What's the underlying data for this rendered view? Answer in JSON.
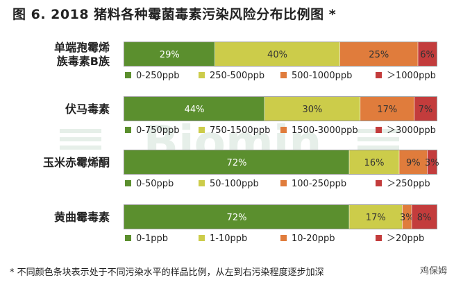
{
  "title": "图 6. 2018 猪料各种霉菌毒素污染风险分布比例图 *",
  "footnote": "* 不同颜色条块表示处于不同污染水平的样品比例，从左到右污染程度逐步加深",
  "watermark": {
    "logo_text": "Biomin",
    "credit_text": "鸡保姆"
  },
  "colors": {
    "level1": "#5b8f2e",
    "level2": "#cccc4a",
    "level3": "#e07c3c",
    "level4": "#c33c3c",
    "bar_border": "#999999"
  },
  "chart_data": {
    "type": "bar",
    "orientation": "horizontal-stacked-100",
    "unit": "%",
    "bars": [
      {
        "category_lines": [
          "单端孢霉烯",
          "族毒素B族"
        ],
        "values": [
          29,
          40,
          25,
          6
        ],
        "labels": [
          "29%",
          "40%",
          "25%",
          "6%"
        ],
        "legend": [
          "0-250ppb",
          "250-500ppb",
          "500-1000ppb",
          "＞1000ppb"
        ]
      },
      {
        "category_lines": [
          "伏马毒素"
        ],
        "values": [
          44,
          30,
          17,
          7
        ],
        "labels": [
          "44%",
          "30%",
          "17%",
          "7%"
        ],
        "legend": [
          "0-750ppb",
          "750-1500ppb",
          "1500-3000ppb",
          "＞3000ppb"
        ]
      },
      {
        "category_lines": [
          "玉米赤霉烯酮"
        ],
        "values": [
          72,
          16,
          9,
          3
        ],
        "labels": [
          "72%",
          "16%",
          "9%",
          "3%"
        ],
        "legend": [
          "0-50ppb",
          "50-100ppb",
          "100-250ppb",
          "＞250ppb"
        ]
      },
      {
        "category_lines": [
          "黄曲霉毒素"
        ],
        "values": [
          72,
          17,
          3,
          8
        ],
        "labels": [
          "72%",
          "17%",
          "3%",
          "8%"
        ],
        "legend": [
          "0-1ppb",
          "1-10ppb",
          "10-20ppb",
          "＞20ppb"
        ]
      }
    ]
  }
}
